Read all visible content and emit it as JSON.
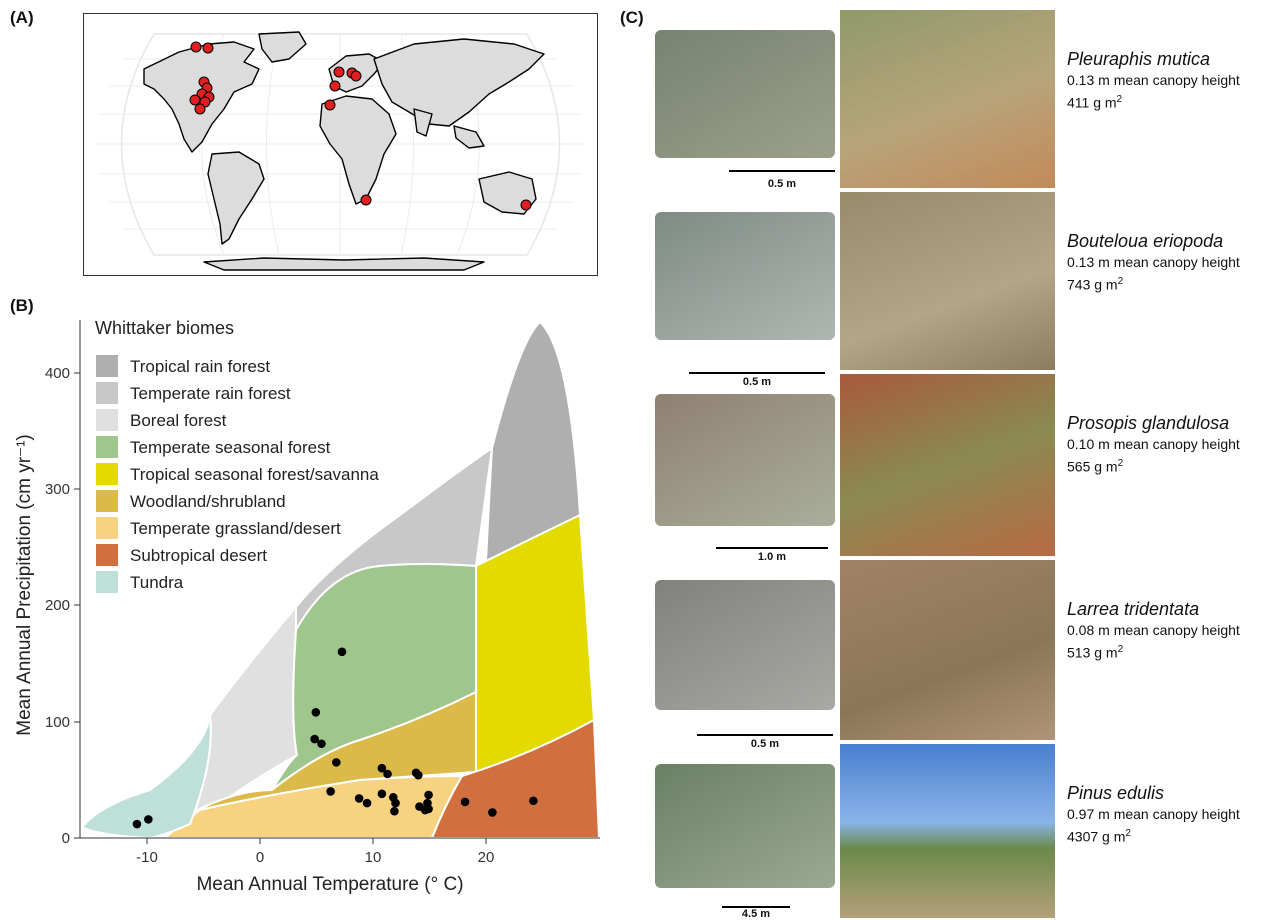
{
  "panels": {
    "a": "(A)",
    "b": "(B)",
    "c": "(C)"
  },
  "map": {
    "colors": {
      "land": "#dcdcdc",
      "outline": "#000000",
      "site": "#e02020",
      "grid": "#e6e6e6"
    }
  },
  "chart_data": {
    "type": "scatter",
    "xlabel": "Mean Annual Temperature (° C)",
    "ylabel": "Mean Annual Precipitation (cm yr⁻¹)",
    "xlim": [
      -16,
      30
    ],
    "ylim": [
      0,
      440
    ],
    "x_ticks": [
      "-10",
      "0",
      "10",
      "20"
    ],
    "y_ticks": [
      "0",
      "100",
      "200",
      "300",
      "400"
    ],
    "legend": {
      "title": "Whittaker biomes",
      "placement": "top-left",
      "items": [
        {
          "label": "Tropical rain forest",
          "color": "#afafaf"
        },
        {
          "label": "Temperate rain forest",
          "color": "#c8c8c8"
        },
        {
          "label": "Boreal forest",
          "color": "#e0e0e0"
        },
        {
          "label": "Temperate seasonal forest",
          "color": "#9fc68c"
        },
        {
          "label": "Tropical seasonal forest/savanna",
          "color": "#e3da00"
        },
        {
          "label": "Woodland/shrubland",
          "color": "#dcba4a"
        },
        {
          "label": "Temperate grassland/desert",
          "color": "#f7d280"
        },
        {
          "label": "Subtropical desert",
          "color": "#d1703e"
        },
        {
          "label": "Tundra",
          "color": "#bfe0d9"
        }
      ]
    },
    "points": [
      {
        "x": -11,
        "y": 12
      },
      {
        "x": -10,
        "y": 16
      },
      {
        "x": 4.7,
        "y": 108
      },
      {
        "x": 4.6,
        "y": 85
      },
      {
        "x": 5.2,
        "y": 81
      },
      {
        "x": 7,
        "y": 160
      },
      {
        "x": 6.5,
        "y": 65
      },
      {
        "x": 6,
        "y": 40
      },
      {
        "x": 8.5,
        "y": 34
      },
      {
        "x": 9.2,
        "y": 30
      },
      {
        "x": 10.5,
        "y": 60
      },
      {
        "x": 11,
        "y": 55
      },
      {
        "x": 10.5,
        "y": 38
      },
      {
        "x": 11.5,
        "y": 35
      },
      {
        "x": 11.7,
        "y": 30
      },
      {
        "x": 11.6,
        "y": 23
      },
      {
        "x": 13.5,
        "y": 56
      },
      {
        "x": 13.7,
        "y": 54
      },
      {
        "x": 13.8,
        "y": 27
      },
      {
        "x": 14.6,
        "y": 37
      },
      {
        "x": 14.5,
        "y": 30
      },
      {
        "x": 14.6,
        "y": 25
      },
      {
        "x": 14.3,
        "y": 24
      },
      {
        "x": 17.8,
        "y": 31
      },
      {
        "x": 20.2,
        "y": 22
      },
      {
        "x": 23.8,
        "y": 32
      }
    ]
  },
  "species": [
    {
      "name": "Pleuraphis mutica",
      "height": "0.13 m mean canopy height",
      "mass": "411 g m",
      "sup": "2",
      "scale": "0.5 m"
    },
    {
      "name": "Bouteloua eriopoda",
      "height": "0.13 m mean canopy height",
      "mass": "743 g m",
      "sup": "2",
      "scale": "0.5 m"
    },
    {
      "name": "Prosopis glandulosa",
      "height": "0.10 m mean canopy height",
      "mass": "565 g m",
      "sup": "2",
      "scale": "1.0 m"
    },
    {
      "name": "Larrea tridentata",
      "height": "0.08 m mean canopy height",
      "mass": "513 g m",
      "sup": "2",
      "scale": "0.5 m"
    },
    {
      "name": "Pinus edulis",
      "height": "0.97 m mean canopy height",
      "mass": "4307 g m",
      "sup": "2",
      "scale": "4.5 m"
    }
  ]
}
